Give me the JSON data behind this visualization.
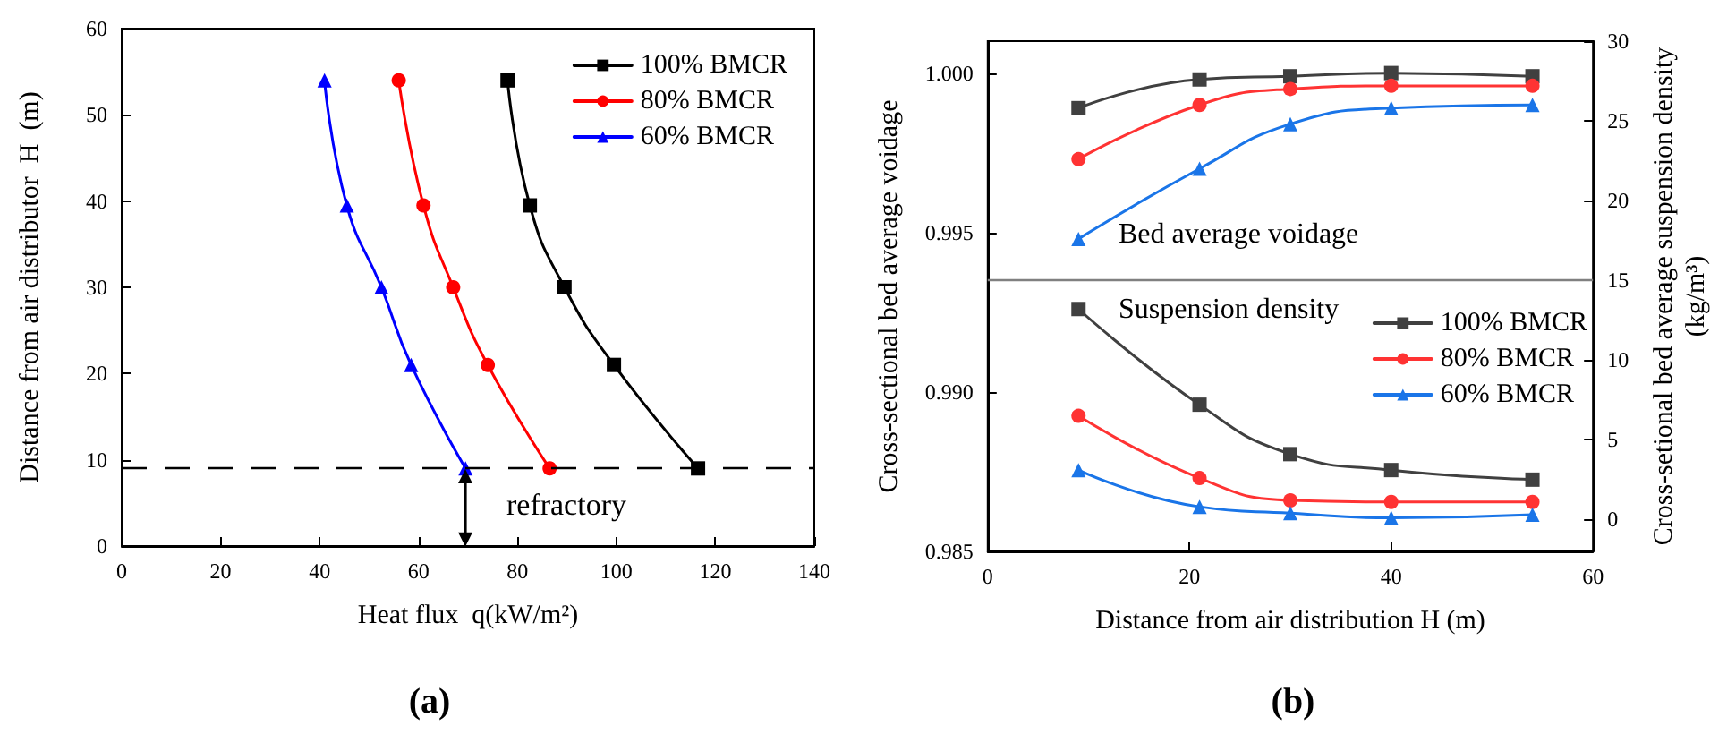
{
  "chart_data": [
    {
      "type": "line",
      "xlabel": "Heat flux  q(kW/m²)",
      "ylabel": "Distance from air distributor  H  (m)",
      "xlim": [
        0,
        140
      ],
      "xticks": [
        0,
        20,
        40,
        60,
        80,
        100,
        120,
        140
      ],
      "ylim": [
        0,
        60
      ],
      "yticks": [
        0,
        10,
        20,
        30,
        40,
        50,
        60
      ],
      "legend": "top right",
      "grid": false,
      "annotations": [
        "(a)"
      ],
      "ref_lines": [
        {
          "axis": "y",
          "value": 9,
          "label": "refractory",
          "line_style": "dashed",
          "color": "#000000"
        }
      ],
      "series": [
        {
          "name": "100% BMCR",
          "color": "#000000",
          "marker": "square",
          "x": [
            78,
            82.5,
            89.5,
            99.5,
            116.5
          ],
          "values": [
            54,
            39.5,
            30,
            21,
            9
          ]
        },
        {
          "name": "80% BMCR",
          "color": "#ff0000",
          "marker": "circle",
          "x": [
            56,
            61,
            67,
            74,
            86.5
          ],
          "values": [
            54,
            39.5,
            30,
            21,
            9
          ]
        },
        {
          "name": "60% BMCR",
          "color": "#0000ff",
          "marker": "triangle",
          "x": [
            41,
            45.5,
            52.5,
            58.5,
            69.5
          ],
          "values": [
            54,
            39.5,
            30,
            21,
            9
          ]
        }
      ]
    },
    {
      "type": "line",
      "xlabel": "Distance from air distribution H (m)",
      "ylabel": "Cross-sectional bed average voidage",
      "y2label": "Cross-setional bed average suspension density (kg/m³)",
      "xlim": [
        0,
        60
      ],
      "xticks": [
        0,
        20,
        40,
        60
      ],
      "ylim": [
        0.985,
        1.001
      ],
      "yticks": [
        0.985,
        {
          "value": 0.99,
          "label": "0.990"
        },
        0.995,
        {
          "value": 1,
          "label": "1.000"
        }
      ],
      "y2lim": [
        -2,
        30
      ],
      "y2ticks": [
        0,
        5,
        10,
        15,
        20,
        25,
        30
      ],
      "legend": "right",
      "grid": false,
      "annotations": [
        "Bed average voidage",
        "Suspension density",
        "(b)"
      ],
      "ref_lines": [
        {
          "axis": "y2",
          "value": 15,
          "color": "#808080",
          "line_style": "solid"
        }
      ],
      "x": [
        9,
        21,
        30,
        40,
        54
      ],
      "series": [
        {
          "color": "#404040",
          "marker": "square",
          "values": [
            0.9989,
            0.9998,
            0.9999,
            1.0,
            0.9999
          ]
        },
        {
          "color": "#ff3333",
          "marker": "circle",
          "values": [
            0.9973,
            0.999,
            0.9995,
            0.9996,
            0.9996
          ]
        },
        {
          "color": "#1a75e8",
          "marker": "triangle",
          "values": [
            0.9948,
            0.997,
            0.9984,
            0.9989,
            0.999
          ]
        },
        {
          "name": "100% BMCR",
          "axis": "y2",
          "color": "#404040",
          "marker": "square",
          "values": [
            13.2,
            7.2,
            4.1,
            3.1,
            2.5
          ]
        },
        {
          "name": "80% BMCR",
          "axis": "y2",
          "color": "#ff3333",
          "marker": "circle",
          "values": [
            6.5,
            2.6,
            1.2,
            1.1,
            1.1
          ]
        },
        {
          "name": "60% BMCR",
          "axis": "y2",
          "color": "#1a75e8",
          "marker": "triangle",
          "values": [
            3.1,
            0.8,
            0.4,
            0.1,
            0.3
          ]
        }
      ]
    }
  ]
}
